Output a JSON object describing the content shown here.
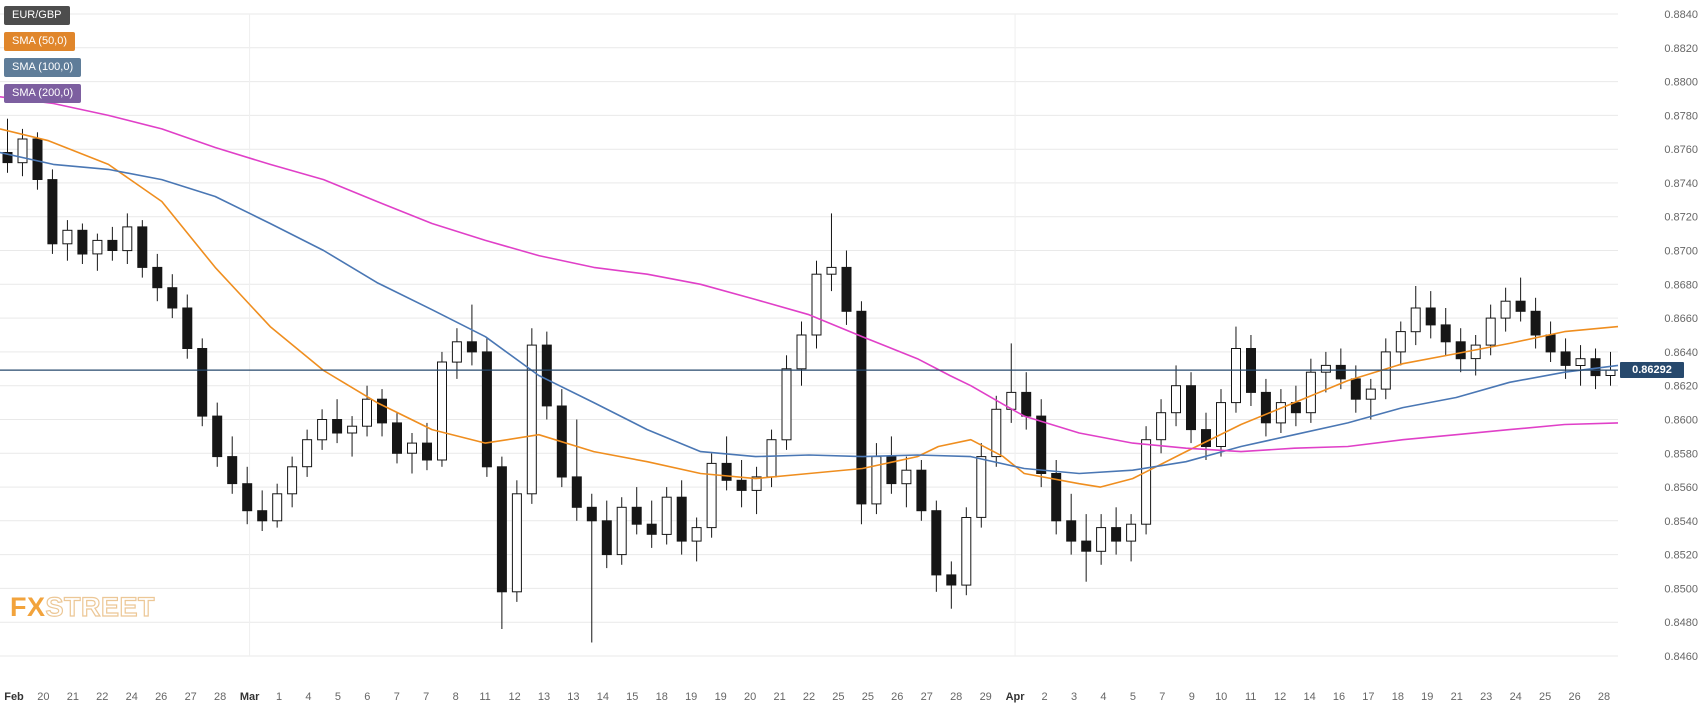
{
  "legend": [
    {
      "label": "EUR/GBP",
      "bg": "#4d4d4d"
    },
    {
      "label": "SMA (50,0)",
      "bg": "#e0862b"
    },
    {
      "label": "SMA (100,0)",
      "bg": "#5f7d99"
    },
    {
      "label": "SMA (200,0)",
      "bg": "#7d5fa0"
    }
  ],
  "current_price": {
    "value": "0.86292",
    "color": "#27496d"
  },
  "watermark": {
    "fx": "FX",
    "street": "STREET"
  },
  "chart_data": {
    "type": "candlestick",
    "symbol": "EUR/GBP",
    "y_range": [
      0.846,
      0.884
    ],
    "y_ticks": [
      "0.8840",
      "0.8820",
      "0.8800",
      "0.8780",
      "0.8760",
      "0.8740",
      "0.8720",
      "0.8700",
      "0.8680",
      "0.8660",
      "0.8640",
      "0.8620",
      "0.8600",
      "0.8580",
      "0.8560",
      "0.8540",
      "0.8520",
      "0.8500",
      "0.8480",
      "0.8460"
    ],
    "x_labels": [
      "Feb",
      "20",
      "21",
      "22",
      "24",
      "26",
      "27",
      "28",
      "Mar",
      "1",
      "4",
      "5",
      "6",
      "7",
      "7",
      "8",
      "11",
      "12",
      "13",
      "13",
      "14",
      "15",
      "18",
      "19",
      "19",
      "20",
      "21",
      "22",
      "25",
      "25",
      "26",
      "27",
      "28",
      "29",
      "Apr",
      "2",
      "3",
      "4",
      "5",
      "7",
      "9",
      "10",
      "11",
      "12",
      "14",
      "16",
      "17",
      "18",
      "19",
      "21",
      "23",
      "24",
      "25",
      "26",
      "28"
    ],
    "current_price": 0.86292,
    "grid": {
      "h_color": "#e9e9e9",
      "v_color": "#efefef",
      "v_month_indices": [
        8,
        34
      ]
    },
    "candle_colors": {
      "up_fill": "#ffffff",
      "down_fill": "#161616",
      "stroke": "#161616"
    },
    "candles": [
      [
        0.8758,
        0.8778,
        0.8746,
        0.8752
      ],
      [
        0.8752,
        0.8772,
        0.8744,
        0.8766
      ],
      [
        0.8766,
        0.877,
        0.8736,
        0.8742
      ],
      [
        0.8742,
        0.8748,
        0.8698,
        0.8704
      ],
      [
        0.8704,
        0.8718,
        0.8694,
        0.8712
      ],
      [
        0.8712,
        0.8716,
        0.8692,
        0.8698
      ],
      [
        0.8698,
        0.871,
        0.8688,
        0.8706
      ],
      [
        0.8706,
        0.8714,
        0.8694,
        0.87
      ],
      [
        0.87,
        0.8722,
        0.8692,
        0.8714
      ],
      [
        0.8714,
        0.8718,
        0.8684,
        0.869
      ],
      [
        0.869,
        0.8698,
        0.867,
        0.8678
      ],
      [
        0.8678,
        0.8686,
        0.866,
        0.8666
      ],
      [
        0.8666,
        0.8674,
        0.8636,
        0.8642
      ],
      [
        0.8642,
        0.8648,
        0.8596,
        0.8602
      ],
      [
        0.8602,
        0.861,
        0.8572,
        0.8578
      ],
      [
        0.8578,
        0.859,
        0.8556,
        0.8562
      ],
      [
        0.8562,
        0.8572,
        0.8538,
        0.8546
      ],
      [
        0.8546,
        0.8558,
        0.8534,
        0.854
      ],
      [
        0.854,
        0.8562,
        0.8536,
        0.8556
      ],
      [
        0.8556,
        0.8578,
        0.8548,
        0.8572
      ],
      [
        0.8572,
        0.8594,
        0.8566,
        0.8588
      ],
      [
        0.8588,
        0.8606,
        0.8582,
        0.86
      ],
      [
        0.86,
        0.8612,
        0.8586,
        0.8592
      ],
      [
        0.8592,
        0.8602,
        0.8578,
        0.8596
      ],
      [
        0.8596,
        0.862,
        0.859,
        0.8612
      ],
      [
        0.8612,
        0.8618,
        0.859,
        0.8598
      ],
      [
        0.8598,
        0.8604,
        0.8574,
        0.858
      ],
      [
        0.858,
        0.8592,
        0.8568,
        0.8586
      ],
      [
        0.8586,
        0.8598,
        0.857,
        0.8576
      ],
      [
        0.8576,
        0.864,
        0.8572,
        0.8634
      ],
      [
        0.8634,
        0.8654,
        0.8624,
        0.8646
      ],
      [
        0.8646,
        0.8668,
        0.8632,
        0.864
      ],
      [
        0.864,
        0.8648,
        0.8566,
        0.8572
      ],
      [
        0.8572,
        0.8578,
        0.8476,
        0.8498
      ],
      [
        0.8498,
        0.8564,
        0.8492,
        0.8556
      ],
      [
        0.8556,
        0.8654,
        0.855,
        0.8644
      ],
      [
        0.8644,
        0.8652,
        0.86,
        0.8608
      ],
      [
        0.8608,
        0.8618,
        0.856,
        0.8566
      ],
      [
        0.8566,
        0.86,
        0.854,
        0.8548
      ],
      [
        0.8548,
        0.8556,
        0.8468,
        0.854
      ],
      [
        0.854,
        0.8552,
        0.8512,
        0.852
      ],
      [
        0.852,
        0.8554,
        0.8514,
        0.8548
      ],
      [
        0.8548,
        0.856,
        0.8532,
        0.8538
      ],
      [
        0.8538,
        0.8552,
        0.8524,
        0.8532
      ],
      [
        0.8532,
        0.856,
        0.8526,
        0.8554
      ],
      [
        0.8554,
        0.8564,
        0.852,
        0.8528
      ],
      [
        0.8528,
        0.8542,
        0.8516,
        0.8536
      ],
      [
        0.8536,
        0.858,
        0.853,
        0.8574
      ],
      [
        0.8574,
        0.859,
        0.8558,
        0.8564
      ],
      [
        0.8564,
        0.8576,
        0.8548,
        0.8558
      ],
      [
        0.8558,
        0.8572,
        0.8544,
        0.8566
      ],
      [
        0.8566,
        0.8594,
        0.856,
        0.8588
      ],
      [
        0.8588,
        0.8638,
        0.8582,
        0.863
      ],
      [
        0.863,
        0.8658,
        0.862,
        0.865
      ],
      [
        0.865,
        0.8694,
        0.8642,
        0.8686
      ],
      [
        0.8686,
        0.8722,
        0.8676,
        0.869
      ],
      [
        0.869,
        0.87,
        0.8656,
        0.8664
      ],
      [
        0.8664,
        0.867,
        0.8538,
        0.855
      ],
      [
        0.855,
        0.8586,
        0.8544,
        0.8578
      ],
      [
        0.8578,
        0.859,
        0.8556,
        0.8562
      ],
      [
        0.8562,
        0.8578,
        0.8548,
        0.857
      ],
      [
        0.857,
        0.8576,
        0.854,
        0.8546
      ],
      [
        0.8546,
        0.8552,
        0.8498,
        0.8508
      ],
      [
        0.8508,
        0.8516,
        0.8488,
        0.8502
      ],
      [
        0.8502,
        0.8548,
        0.8496,
        0.8542
      ],
      [
        0.8542,
        0.8586,
        0.8536,
        0.8578
      ],
      [
        0.8578,
        0.8614,
        0.8572,
        0.8606
      ],
      [
        0.8606,
        0.8645,
        0.8598,
        0.8616
      ],
      [
        0.8616,
        0.8628,
        0.8594,
        0.8602
      ],
      [
        0.8602,
        0.8612,
        0.856,
        0.8568
      ],
      [
        0.8568,
        0.8576,
        0.8532,
        0.854
      ],
      [
        0.854,
        0.8556,
        0.852,
        0.8528
      ],
      [
        0.8528,
        0.8544,
        0.8504,
        0.8522
      ],
      [
        0.8522,
        0.8544,
        0.8514,
        0.8536
      ],
      [
        0.8536,
        0.8548,
        0.852,
        0.8528
      ],
      [
        0.8528,
        0.8544,
        0.8516,
        0.8538
      ],
      [
        0.8538,
        0.8596,
        0.8532,
        0.8588
      ],
      [
        0.8588,
        0.8612,
        0.858,
        0.8604
      ],
      [
        0.8604,
        0.8632,
        0.8596,
        0.862
      ],
      [
        0.862,
        0.8628,
        0.8586,
        0.8594
      ],
      [
        0.8594,
        0.8604,
        0.8576,
        0.8584
      ],
      [
        0.8584,
        0.8618,
        0.8578,
        0.861
      ],
      [
        0.861,
        0.8655,
        0.8604,
        0.8642
      ],
      [
        0.8642,
        0.865,
        0.8608,
        0.8616
      ],
      [
        0.8616,
        0.8624,
        0.859,
        0.8598
      ],
      [
        0.8598,
        0.8618,
        0.8592,
        0.861
      ],
      [
        0.861,
        0.862,
        0.8596,
        0.8604
      ],
      [
        0.8604,
        0.8636,
        0.8598,
        0.8628
      ],
      [
        0.8628,
        0.864,
        0.8616,
        0.8632
      ],
      [
        0.8632,
        0.8642,
        0.8618,
        0.8624
      ],
      [
        0.8624,
        0.8632,
        0.8604,
        0.8612
      ],
      [
        0.8612,
        0.8624,
        0.86,
        0.8618
      ],
      [
        0.8618,
        0.8648,
        0.8612,
        0.864
      ],
      [
        0.864,
        0.8658,
        0.8632,
        0.8652
      ],
      [
        0.8652,
        0.8679,
        0.8644,
        0.8666
      ],
      [
        0.8666,
        0.8676,
        0.8648,
        0.8656
      ],
      [
        0.8656,
        0.8666,
        0.8638,
        0.8646
      ],
      [
        0.8646,
        0.8654,
        0.8628,
        0.8636
      ],
      [
        0.8636,
        0.865,
        0.8626,
        0.8644
      ],
      [
        0.8644,
        0.8668,
        0.8638,
        0.866
      ],
      [
        0.866,
        0.8678,
        0.8652,
        0.867
      ],
      [
        0.867,
        0.8684,
        0.8658,
        0.8664
      ],
      [
        0.8664,
        0.8672,
        0.8642,
        0.865
      ],
      [
        0.865,
        0.8658,
        0.8634,
        0.864
      ],
      [
        0.864,
        0.8648,
        0.8624,
        0.8632
      ],
      [
        0.8632,
        0.8644,
        0.862,
        0.8636
      ],
      [
        0.8636,
        0.8642,
        0.8618,
        0.8626
      ],
      [
        0.8626,
        0.864,
        0.862,
        0.86292
      ]
    ],
    "series": [
      {
        "name": "sma50-line",
        "label": "SMA (50,0)",
        "color": "#ef8e1f",
        "points": [
          [
            0.0,
            0.8772
          ],
          [
            0.03,
            0.8765
          ],
          [
            0.067,
            0.8751
          ],
          [
            0.1,
            0.8729
          ],
          [
            0.133,
            0.869
          ],
          [
            0.167,
            0.8655
          ],
          [
            0.2,
            0.8629
          ],
          [
            0.233,
            0.861
          ],
          [
            0.267,
            0.8594
          ],
          [
            0.3,
            0.8586
          ],
          [
            0.333,
            0.8591
          ],
          [
            0.367,
            0.8581
          ],
          [
            0.4,
            0.8575
          ],
          [
            0.433,
            0.8568
          ],
          [
            0.467,
            0.8565
          ],
          [
            0.5,
            0.8568
          ],
          [
            0.533,
            0.8571
          ],
          [
            0.567,
            0.8578
          ],
          [
            0.58,
            0.8584
          ],
          [
            0.6,
            0.8588
          ],
          [
            0.62,
            0.8578
          ],
          [
            0.633,
            0.8568
          ],
          [
            0.667,
            0.8562
          ],
          [
            0.68,
            0.856
          ],
          [
            0.7,
            0.8565
          ],
          [
            0.733,
            0.8581
          ],
          [
            0.767,
            0.8597
          ],
          [
            0.8,
            0.861
          ],
          [
            0.833,
            0.8623
          ],
          [
            0.867,
            0.8633
          ],
          [
            0.9,
            0.8639
          ],
          [
            0.933,
            0.8645
          ],
          [
            0.967,
            0.8652
          ],
          [
            1.0,
            0.8655
          ]
        ]
      },
      {
        "name": "sma100-line",
        "label": "SMA (100,0)",
        "color": "#4a77b4",
        "points": [
          [
            0.0,
            0.8758
          ],
          [
            0.033,
            0.8751
          ],
          [
            0.067,
            0.8748
          ],
          [
            0.1,
            0.8742
          ],
          [
            0.133,
            0.8732
          ],
          [
            0.167,
            0.8716
          ],
          [
            0.2,
            0.87
          ],
          [
            0.233,
            0.8681
          ],
          [
            0.267,
            0.8665
          ],
          [
            0.3,
            0.8649
          ],
          [
            0.333,
            0.8626
          ],
          [
            0.367,
            0.861
          ],
          [
            0.4,
            0.8594
          ],
          [
            0.433,
            0.8581
          ],
          [
            0.467,
            0.8578
          ],
          [
            0.5,
            0.8579
          ],
          [
            0.533,
            0.8578
          ],
          [
            0.567,
            0.8579
          ],
          [
            0.6,
            0.8578
          ],
          [
            0.633,
            0.8571
          ],
          [
            0.667,
            0.8568
          ],
          [
            0.7,
            0.857
          ],
          [
            0.733,
            0.8575
          ],
          [
            0.767,
            0.8584
          ],
          [
            0.8,
            0.8591
          ],
          [
            0.833,
            0.8598
          ],
          [
            0.867,
            0.8607
          ],
          [
            0.9,
            0.8613
          ],
          [
            0.933,
            0.8622
          ],
          [
            0.967,
            0.8628
          ],
          [
            1.0,
            0.8632
          ]
        ]
      },
      {
        "name": "sma200-line",
        "label": "SMA (200,0)",
        "color": "#e040c8",
        "points": [
          [
            0.0,
            0.8791
          ],
          [
            0.033,
            0.8787
          ],
          [
            0.067,
            0.878
          ],
          [
            0.1,
            0.8772
          ],
          [
            0.133,
            0.8761
          ],
          [
            0.167,
            0.8751
          ],
          [
            0.2,
            0.8742
          ],
          [
            0.233,
            0.8729
          ],
          [
            0.267,
            0.8716
          ],
          [
            0.3,
            0.8706
          ],
          [
            0.333,
            0.8697
          ],
          [
            0.367,
            0.869
          ],
          [
            0.4,
            0.8686
          ],
          [
            0.433,
            0.868
          ],
          [
            0.467,
            0.8671
          ],
          [
            0.5,
            0.8662
          ],
          [
            0.533,
            0.8649
          ],
          [
            0.567,
            0.8636
          ],
          [
            0.587,
            0.8626
          ],
          [
            0.6,
            0.862
          ],
          [
            0.62,
            0.8609
          ],
          [
            0.633,
            0.8602
          ],
          [
            0.667,
            0.8592
          ],
          [
            0.7,
            0.8586
          ],
          [
            0.733,
            0.8583
          ],
          [
            0.767,
            0.8581
          ],
          [
            0.8,
            0.8583
          ],
          [
            0.833,
            0.8584
          ],
          [
            0.867,
            0.8588
          ],
          [
            0.9,
            0.8591
          ],
          [
            0.933,
            0.8594
          ],
          [
            0.967,
            0.8597
          ],
          [
            1.0,
            0.8598
          ]
        ]
      }
    ]
  }
}
